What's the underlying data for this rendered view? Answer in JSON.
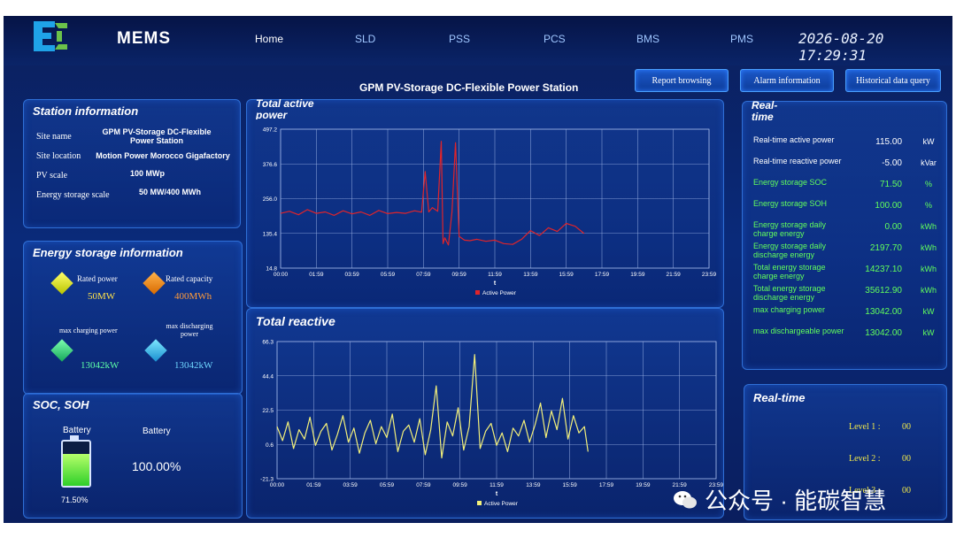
{
  "header": {
    "brand": "MEMS",
    "nav": [
      "Home",
      "SLD",
      "PSS",
      "PCS",
      "BMS",
      "PMS"
    ],
    "active_nav": "Home",
    "datetime": "2026-08-20 17:29:31"
  },
  "station_title": "GPM PV-Storage DC-Flexible Power Station",
  "buttons": {
    "report": "Report browsing",
    "alarm": "Alarm information",
    "history": "Historical data query"
  },
  "station_info": {
    "title": "Station information",
    "site_name_label": "Site name",
    "site_name_value": "GPM PV-Storage  DC-Flexible Power Station",
    "site_location_label": "Site location",
    "site_location_value": "Motion Power Morocco Gigafactory",
    "pv_scale_label": "PV scale",
    "pv_scale_value": "100 MWp",
    "storage_scale_label": "Energy storage scale",
    "storage_scale_value": "50 MW/400 MWh"
  },
  "storage_info": {
    "title": "Energy storage information",
    "rated_power_label": "Rated power",
    "rated_power_value": "50MW",
    "rated_capacity_label": "Rated capacity",
    "rated_capacity_value": "400MWh",
    "max_charging_label": "max charging power",
    "max_charging_value": "13042kW",
    "max_discharging_label": "max discharging power",
    "max_discharging_value": "13042kW"
  },
  "soc_soh": {
    "title": "SOC, SOH",
    "battery_label_1": "Battery",
    "battery_label_2": "Battery",
    "soc_value": "71.50%",
    "soh_value": "100.00%",
    "soc_level": 0.715
  },
  "realtime": {
    "title": "Real-time",
    "rows": [
      {
        "label": "Real-time active power",
        "value": "115.00",
        "unit": "kW",
        "color": "white"
      },
      {
        "label": "Real-time reactive power",
        "value": "-5.00",
        "unit": "kVar",
        "color": "white"
      },
      {
        "label": "Energy storage SOC",
        "value": "71.50",
        "unit": "%",
        "color": "green"
      },
      {
        "label": "Energy storage SOH",
        "value": "100.00",
        "unit": "%",
        "color": "green"
      },
      {
        "label": "Energy storage daily charge energy",
        "value": "0.00",
        "unit": "kWh",
        "color": "green"
      },
      {
        "label": "Energy storage daily discharge energy",
        "value": "2197.70",
        "unit": "kWh",
        "color": "green"
      },
      {
        "label": "Total energy storage charge energy",
        "value": "14237.10",
        "unit": "kWh",
        "color": "green"
      },
      {
        "label": "Total energy storage discharge energy",
        "value": "35612.90",
        "unit": "kWh",
        "color": "green"
      },
      {
        "label": "max charging power",
        "value": "13042.00",
        "unit": "kW",
        "color": "green"
      },
      {
        "label": "max dischargeable power",
        "value": "13042.00",
        "unit": "kW",
        "color": "green"
      }
    ]
  },
  "realtime_alarm": {
    "title": "Real-time",
    "level1_label": "Level 1 :",
    "level1_value": "00",
    "level2_label": "Level 2 :",
    "level2_value": "00",
    "level3_label": "Level 3 :",
    "level3_value": "00"
  },
  "watermark": "公众号 · 能碳智慧",
  "colors": {
    "active_series": "#e0242a",
    "reactive_series": "#f3f07a",
    "accent": "#2f6fd6"
  },
  "chart_data": [
    {
      "type": "line",
      "title": "Total active power",
      "xlabel": "t",
      "x_ticks": [
        "00:00",
        "01:59",
        "03:59",
        "05:59",
        "07:59",
        "09:59",
        "11:59",
        "13:59",
        "15:59",
        "17:59",
        "19:59",
        "21:59",
        "23:59"
      ],
      "y_ticks": [
        14.8,
        135.4,
        256.0,
        376.6,
        497.2
      ],
      "ylim": [
        14.8,
        497.2
      ],
      "xlim": [
        0,
        24
      ],
      "grid": true,
      "legend_position": "bottom",
      "series": [
        {
          "name": "Active Power",
          "color": "#e0242a",
          "x": [
            0,
            0.5,
            1,
            1.5,
            2,
            2.5,
            3,
            3.5,
            4,
            4.5,
            5,
            5.5,
            6,
            6.5,
            7,
            7.5,
            7.9,
            8.1,
            8.3,
            8.5,
            8.8,
            9.0,
            9.1,
            9.2,
            9.4,
            9.6,
            9.8,
            10.0,
            10.3,
            10.6,
            11.0,
            11.5,
            12.0,
            12.5,
            13.0,
            13.5,
            14.0,
            14.5,
            15.0,
            15.5,
            16.0,
            16.5,
            17.0
          ],
          "y": [
            205,
            212,
            200,
            218,
            205,
            210,
            198,
            214,
            203,
            210,
            198,
            215,
            204,
            208,
            205,
            214,
            209,
            350,
            210,
            225,
            212,
            455,
            100,
            120,
            95,
            210,
            450,
            125,
            112,
            110,
            115,
            108,
            112,
            100,
            97,
            115,
            145,
            128,
            155,
            142,
            170,
            160,
            135
          ]
        }
      ]
    },
    {
      "type": "line",
      "title": "Total reactive power",
      "xlabel": "t",
      "x_ticks": [
        "00:00",
        "01:59",
        "03:59",
        "05:59",
        "07:59",
        "09:59",
        "11:59",
        "13:59",
        "15:59",
        "17:59",
        "19:59",
        "21:59",
        "23:59"
      ],
      "y_ticks": [
        -21.3,
        0.6,
        22.5,
        44.4,
        66.3
      ],
      "ylim": [
        -21.3,
        66.3
      ],
      "xlim": [
        0,
        24
      ],
      "grid": true,
      "legend_position": "bottom",
      "series": [
        {
          "name": "Active Power",
          "color": "#f3f07a",
          "x": [
            0,
            0.3,
            0.6,
            0.9,
            1.2,
            1.5,
            1.8,
            2.1,
            2.4,
            2.7,
            3.0,
            3.3,
            3.6,
            3.9,
            4.2,
            4.5,
            4.8,
            5.1,
            5.4,
            5.7,
            6.0,
            6.3,
            6.6,
            6.9,
            7.2,
            7.5,
            7.8,
            8.1,
            8.4,
            8.7,
            9.0,
            9.3,
            9.6,
            9.9,
            10.2,
            10.5,
            10.8,
            11.1,
            11.4,
            11.7,
            12.0,
            12.3,
            12.6,
            12.9,
            13.2,
            13.5,
            13.8,
            14.1,
            14.4,
            14.7,
            15.0,
            15.3,
            15.6,
            15.9,
            16.2,
            16.5,
            16.8,
            17.0
          ],
          "y": [
            12,
            3,
            15,
            -2,
            10,
            4,
            18,
            0,
            9,
            14,
            -3,
            7,
            19,
            2,
            11,
            -5,
            8,
            16,
            1,
            12,
            5,
            20,
            -4,
            9,
            13,
            2,
            17,
            -6,
            10,
            38,
            -8,
            15,
            6,
            24,
            -3,
            12,
            58,
            -2,
            9,
            14,
            0,
            8,
            -4,
            11,
            6,
            16,
            2,
            13,
            27,
            5,
            22,
            10,
            30,
            4,
            19,
            8,
            12,
            -4
          ]
        }
      ]
    }
  ]
}
